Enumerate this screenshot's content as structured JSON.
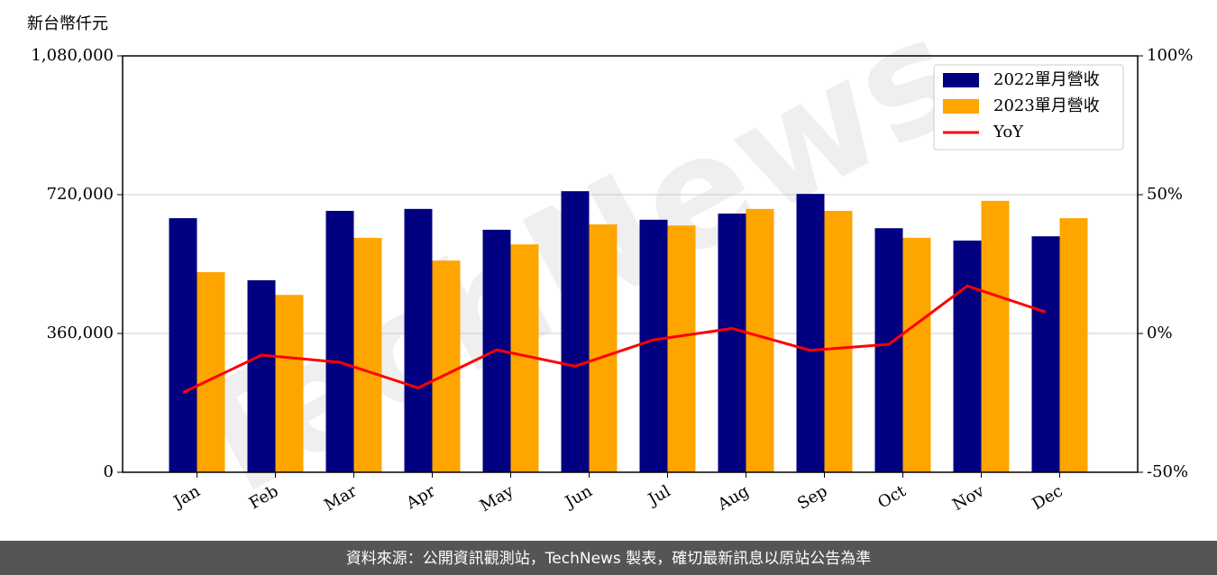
{
  "chart_data": {
    "type": "bar",
    "unit_label": "新台幣仟元",
    "watermark": "TechNews",
    "footer": "資料來源：公開資訊觀測站，TechNews 製表，確切最新訊息以原站公告為準",
    "categories": [
      "Jan",
      "Feb",
      "Mar",
      "Apr",
      "May",
      "Jun",
      "Jul",
      "Aug",
      "Sep",
      "Oct",
      "Nov",
      "Dec"
    ],
    "series": [
      {
        "name": "2022單月營收",
        "type": "bar",
        "color": "#000080",
        "values": [
          659000,
          498000,
          678000,
          683000,
          629000,
          729000,
          655000,
          671000,
          722000,
          633000,
          601000,
          612000
        ]
      },
      {
        "name": "2023單月營收",
        "type": "bar",
        "color": "#ffa500",
        "values": [
          519000,
          460000,
          608000,
          549000,
          591000,
          643000,
          640000,
          683000,
          678000,
          608000,
          704000,
          659000
        ]
      },
      {
        "name": "YoY",
        "type": "line",
        "color": "#ff0000",
        "axis": "y2",
        "values": [
          -21.3,
          -7.8,
          -10.4,
          -19.6,
          -5.9,
          -11.8,
          -2.3,
          1.8,
          -6.1,
          -3.9,
          17.1,
          7.7
        ]
      }
    ],
    "ylim": [
      0,
      1080000
    ],
    "yticks": [
      {
        "value": 0,
        "label": "0"
      },
      {
        "value": 360000,
        "label": "360,000"
      },
      {
        "value": 720000,
        "label": "720,000"
      },
      {
        "value": 1080000,
        "label": "1,080,000"
      }
    ],
    "y2lim": [
      -50,
      100
    ],
    "y2ticks": [
      {
        "value": -50,
        "label": "-50%"
      },
      {
        "value": 0,
        "label": "0%"
      },
      {
        "value": 50,
        "label": "50%"
      },
      {
        "value": 100,
        "label": "100%"
      }
    ],
    "grid": true,
    "legend": "upper right"
  }
}
